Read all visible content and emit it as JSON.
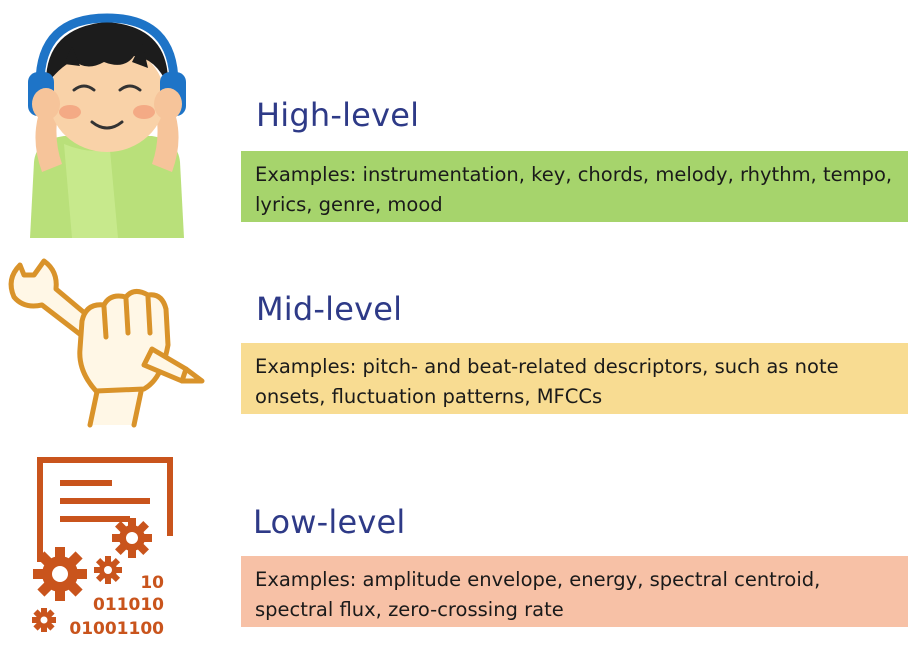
{
  "colors": {
    "title": "#2e3a87",
    "high_box": "#a6d46c",
    "mid_box": "#f8dc92",
    "low_box": "#f7c1a6",
    "low_icon": "#c9541c",
    "mid_icon": "#d9932a"
  },
  "levels": [
    {
      "title": "High-level",
      "examples": "Examples: instrumentation, key, chords, melody, rhythm, tempo, lyrics, genre, mood",
      "icon": "listener-with-headphones-icon"
    },
    {
      "title": "Mid-level",
      "examples": "Examples: pitch- and beat-related descriptors, such as note onsets, fluctuation patterns, MFCCs",
      "icon": "hand-wrench-pencil-icon"
    },
    {
      "title": "Low-level",
      "examples": "Examples: amplitude envelope, energy, spectral centroid, spectral flux, zero-crossing rate",
      "icon": "document-gears-binary-icon",
      "icon_text": [
        "10",
        "011010",
        "01001100"
      ]
    }
  ]
}
